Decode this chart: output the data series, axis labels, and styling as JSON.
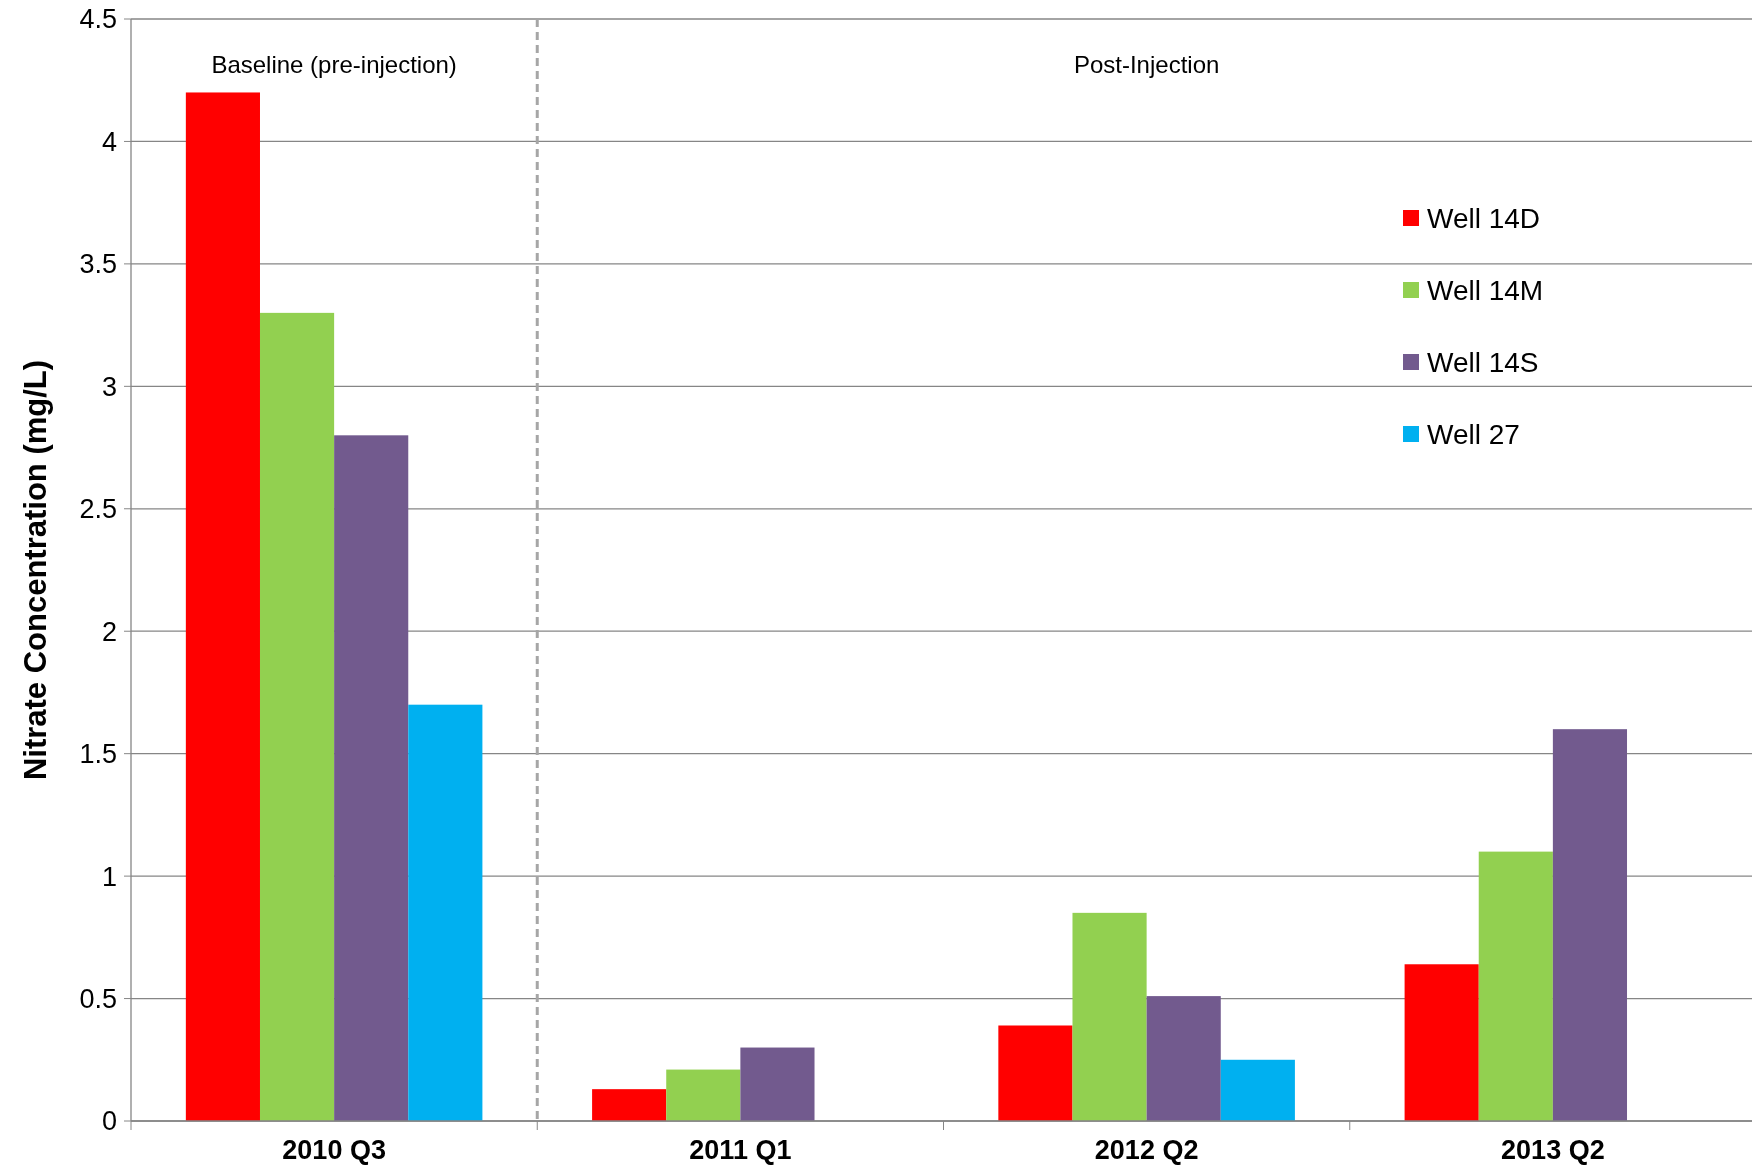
{
  "chart_data": {
    "type": "bar",
    "ylabel": "Nitrate Concentration (mg/L)",
    "categories": [
      "2010 Q3",
      "2011 Q1",
      "2012 Q2",
      "2013 Q2"
    ],
    "series": [
      {
        "name": "Well 14D",
        "color": "#ff0000",
        "values": [
          4.2,
          0.13,
          0.39,
          0.64
        ]
      },
      {
        "name": "Well 14M",
        "color": "#92d050",
        "values": [
          3.3,
          0.21,
          0.85,
          1.1
        ]
      },
      {
        "name": "Well 14S",
        "color": "#725a8e",
        "values": [
          2.8,
          0.3,
          0.51,
          1.6
        ]
      },
      {
        "name": "Well 27",
        "color": "#00b0f0",
        "values": [
          1.7,
          null,
          0.25,
          null
        ]
      }
    ],
    "ylim": [
      0,
      4.5
    ],
    "yticks": [
      0,
      0.5,
      1,
      1.5,
      2,
      2.5,
      3,
      3.5,
      4,
      4.5
    ],
    "grid": "y",
    "legend": "top right",
    "annotations": [
      "Baseline (pre-injection)",
      "Post-Injection"
    ]
  }
}
